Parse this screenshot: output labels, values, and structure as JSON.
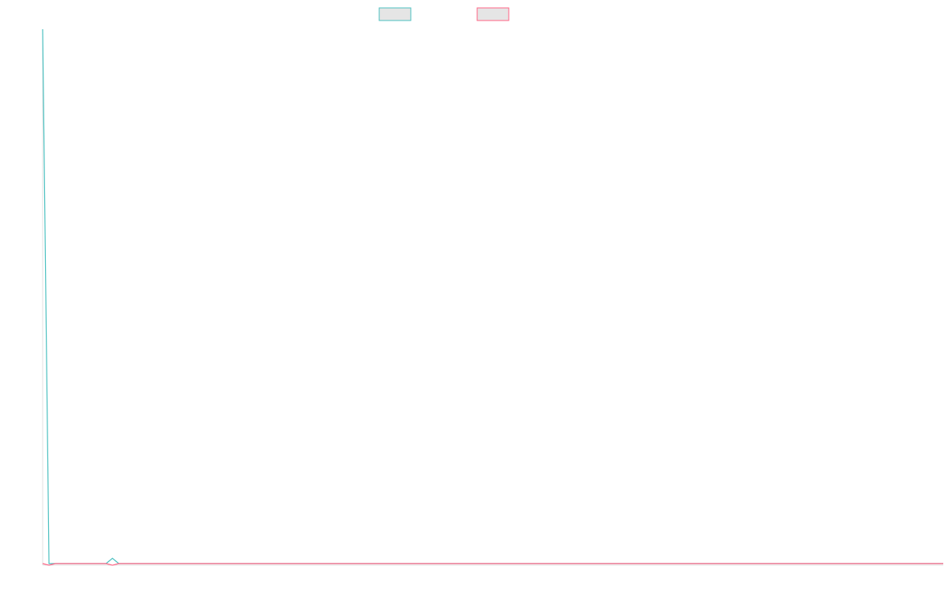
{
  "chart_data": {
    "type": "line",
    "title": "",
    "xlabel": "",
    "ylabel": "",
    "grid": false,
    "legend_position": "top-center",
    "x": [
      0,
      1,
      2,
      3,
      4,
      5,
      6,
      7,
      8,
      9,
      10,
      11,
      12,
      13,
      14,
      15,
      16,
      17,
      18,
      19,
      20,
      21,
      22,
      23,
      24,
      25,
      26,
      27,
      28,
      29,
      30,
      31,
      32,
      33,
      34,
      35,
      36,
      37,
      38,
      39,
      40,
      41,
      42,
      43,
      44,
      45,
      46,
      47,
      48,
      49,
      50,
      51,
      52,
      53,
      54,
      55,
      56,
      57,
      58,
      59,
      60,
      61,
      62,
      63,
      64,
      65,
      66,
      67,
      68,
      69,
      70,
      71,
      72,
      73,
      74,
      75,
      76,
      77,
      78,
      79,
      80,
      81,
      82,
      83,
      84,
      85,
      86,
      87,
      88,
      89,
      90,
      91,
      92,
      93,
      94,
      95,
      96,
      97,
      98,
      99,
      100,
      101,
      102,
      103,
      104,
      105,
      106,
      107,
      108,
      109,
      110,
      111,
      112,
      113,
      114,
      115,
      116,
      117,
      118,
      119,
      120,
      121,
      122,
      123,
      124,
      125,
      126,
      127,
      128,
      129,
      130,
      131,
      132,
      133,
      134,
      135,
      136,
      137,
      138,
      139,
      140,
      141,
      142
    ],
    "xlim": [
      0,
      142
    ],
    "ylim": [
      -1,
      100
    ],
    "series": [
      {
        "name": "",
        "color": "#4bc0c0",
        "values": [
          100,
          0,
          0,
          0,
          0,
          0,
          0,
          0,
          0,
          0,
          0,
          1,
          0,
          0,
          0,
          0,
          0,
          0,
          0,
          0,
          0,
          0,
          0,
          0,
          0,
          0,
          0,
          0,
          0,
          0,
          0,
          0,
          0,
          0,
          0,
          0,
          0,
          0,
          0,
          0,
          0,
          0,
          0,
          0,
          0,
          0,
          0,
          0,
          0,
          0,
          0,
          0,
          0,
          0,
          0,
          0,
          0,
          0,
          0,
          0,
          0,
          0,
          0,
          0,
          0,
          0,
          0,
          0,
          0,
          0,
          0,
          0,
          0,
          0,
          0,
          0,
          0,
          0,
          0,
          0,
          0,
          0,
          0,
          0,
          0,
          0,
          0,
          0,
          0,
          0,
          0,
          0,
          0,
          0,
          0,
          0,
          0,
          0,
          0,
          0,
          0,
          0,
          0,
          0,
          0,
          0,
          0,
          0,
          0,
          0,
          0,
          0,
          0,
          0,
          0,
          0,
          0,
          0,
          0,
          0,
          0,
          0,
          0,
          0,
          0,
          0,
          0,
          0,
          0,
          0,
          0,
          0,
          0,
          0,
          0,
          0,
          0,
          0,
          0,
          0,
          0,
          0,
          0
        ]
      },
      {
        "name": "",
        "color": "#ff6384",
        "values": [
          0,
          -0.3,
          0,
          0,
          0,
          0,
          0,
          0,
          0,
          0,
          0,
          -0.3,
          0,
          0,
          0,
          0,
          0,
          0,
          0,
          0,
          0,
          0,
          0,
          0,
          0,
          0,
          0,
          0,
          0,
          0,
          0,
          0,
          0,
          0,
          0,
          0,
          0,
          0,
          0,
          0,
          0,
          0,
          0,
          0,
          0,
          0,
          0,
          0,
          0,
          0,
          0,
          0,
          0,
          0,
          0,
          0,
          0,
          0,
          0,
          0,
          0,
          0,
          0,
          0,
          0,
          0,
          0,
          0,
          0,
          0,
          0,
          0,
          0,
          0,
          0,
          0,
          0,
          0,
          0,
          0,
          0,
          0,
          0,
          0,
          0,
          0,
          0,
          0,
          0,
          0,
          0,
          0,
          0,
          0,
          0,
          0,
          0,
          0,
          0,
          0,
          0,
          0,
          0,
          0,
          0,
          0,
          0,
          0,
          0,
          0,
          0,
          0,
          0,
          0,
          0,
          0,
          0,
          0,
          0,
          0,
          0,
          0,
          0,
          0,
          0,
          0,
          0,
          0,
          0,
          0,
          0,
          0,
          0,
          0,
          0,
          0,
          0,
          0,
          0,
          0,
          0,
          0,
          0
        ]
      }
    ]
  }
}
